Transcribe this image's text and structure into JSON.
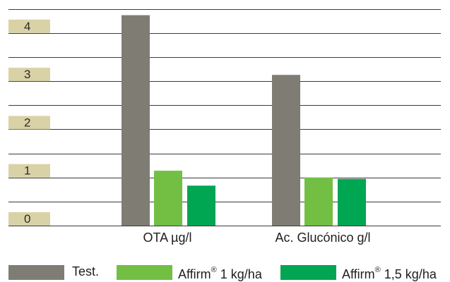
{
  "chart_data": {
    "type": "bar",
    "title": "",
    "xlabel": "",
    "ylabel": "",
    "ylim": [
      0,
      4.5
    ],
    "yticks": [
      "0",
      "1",
      "2",
      "3",
      "4"
    ],
    "grid": true,
    "legend_placement": "bottom",
    "categories": [
      "OTA µg/l",
      "Ac. Glucónico g/l"
    ],
    "series": [
      {
        "name": "Test.",
        "values": [
          4.37,
          3.13
        ],
        "color": "#7f7d73"
      },
      {
        "name": "Affirm® 1 kg/ha",
        "values": [
          1.14,
          1.0
        ],
        "color": "#72bf44"
      },
      {
        "name": "Affirm® 1,5 kg/ha",
        "values": [
          0.83,
          0.97
        ],
        "color": "#00a651"
      }
    ],
    "tick_label_bg": "#d9d2a6",
    "grid_color": "#3a3a3a"
  },
  "legend": [
    {
      "label": "Test.",
      "sup": "",
      "suffix": ""
    },
    {
      "label": "Affirm",
      "sup": "®",
      "suffix": " 1 kg/ha"
    },
    {
      "label": "Affirm",
      "sup": "®",
      "suffix": " 1,5 kg/ha"
    }
  ]
}
